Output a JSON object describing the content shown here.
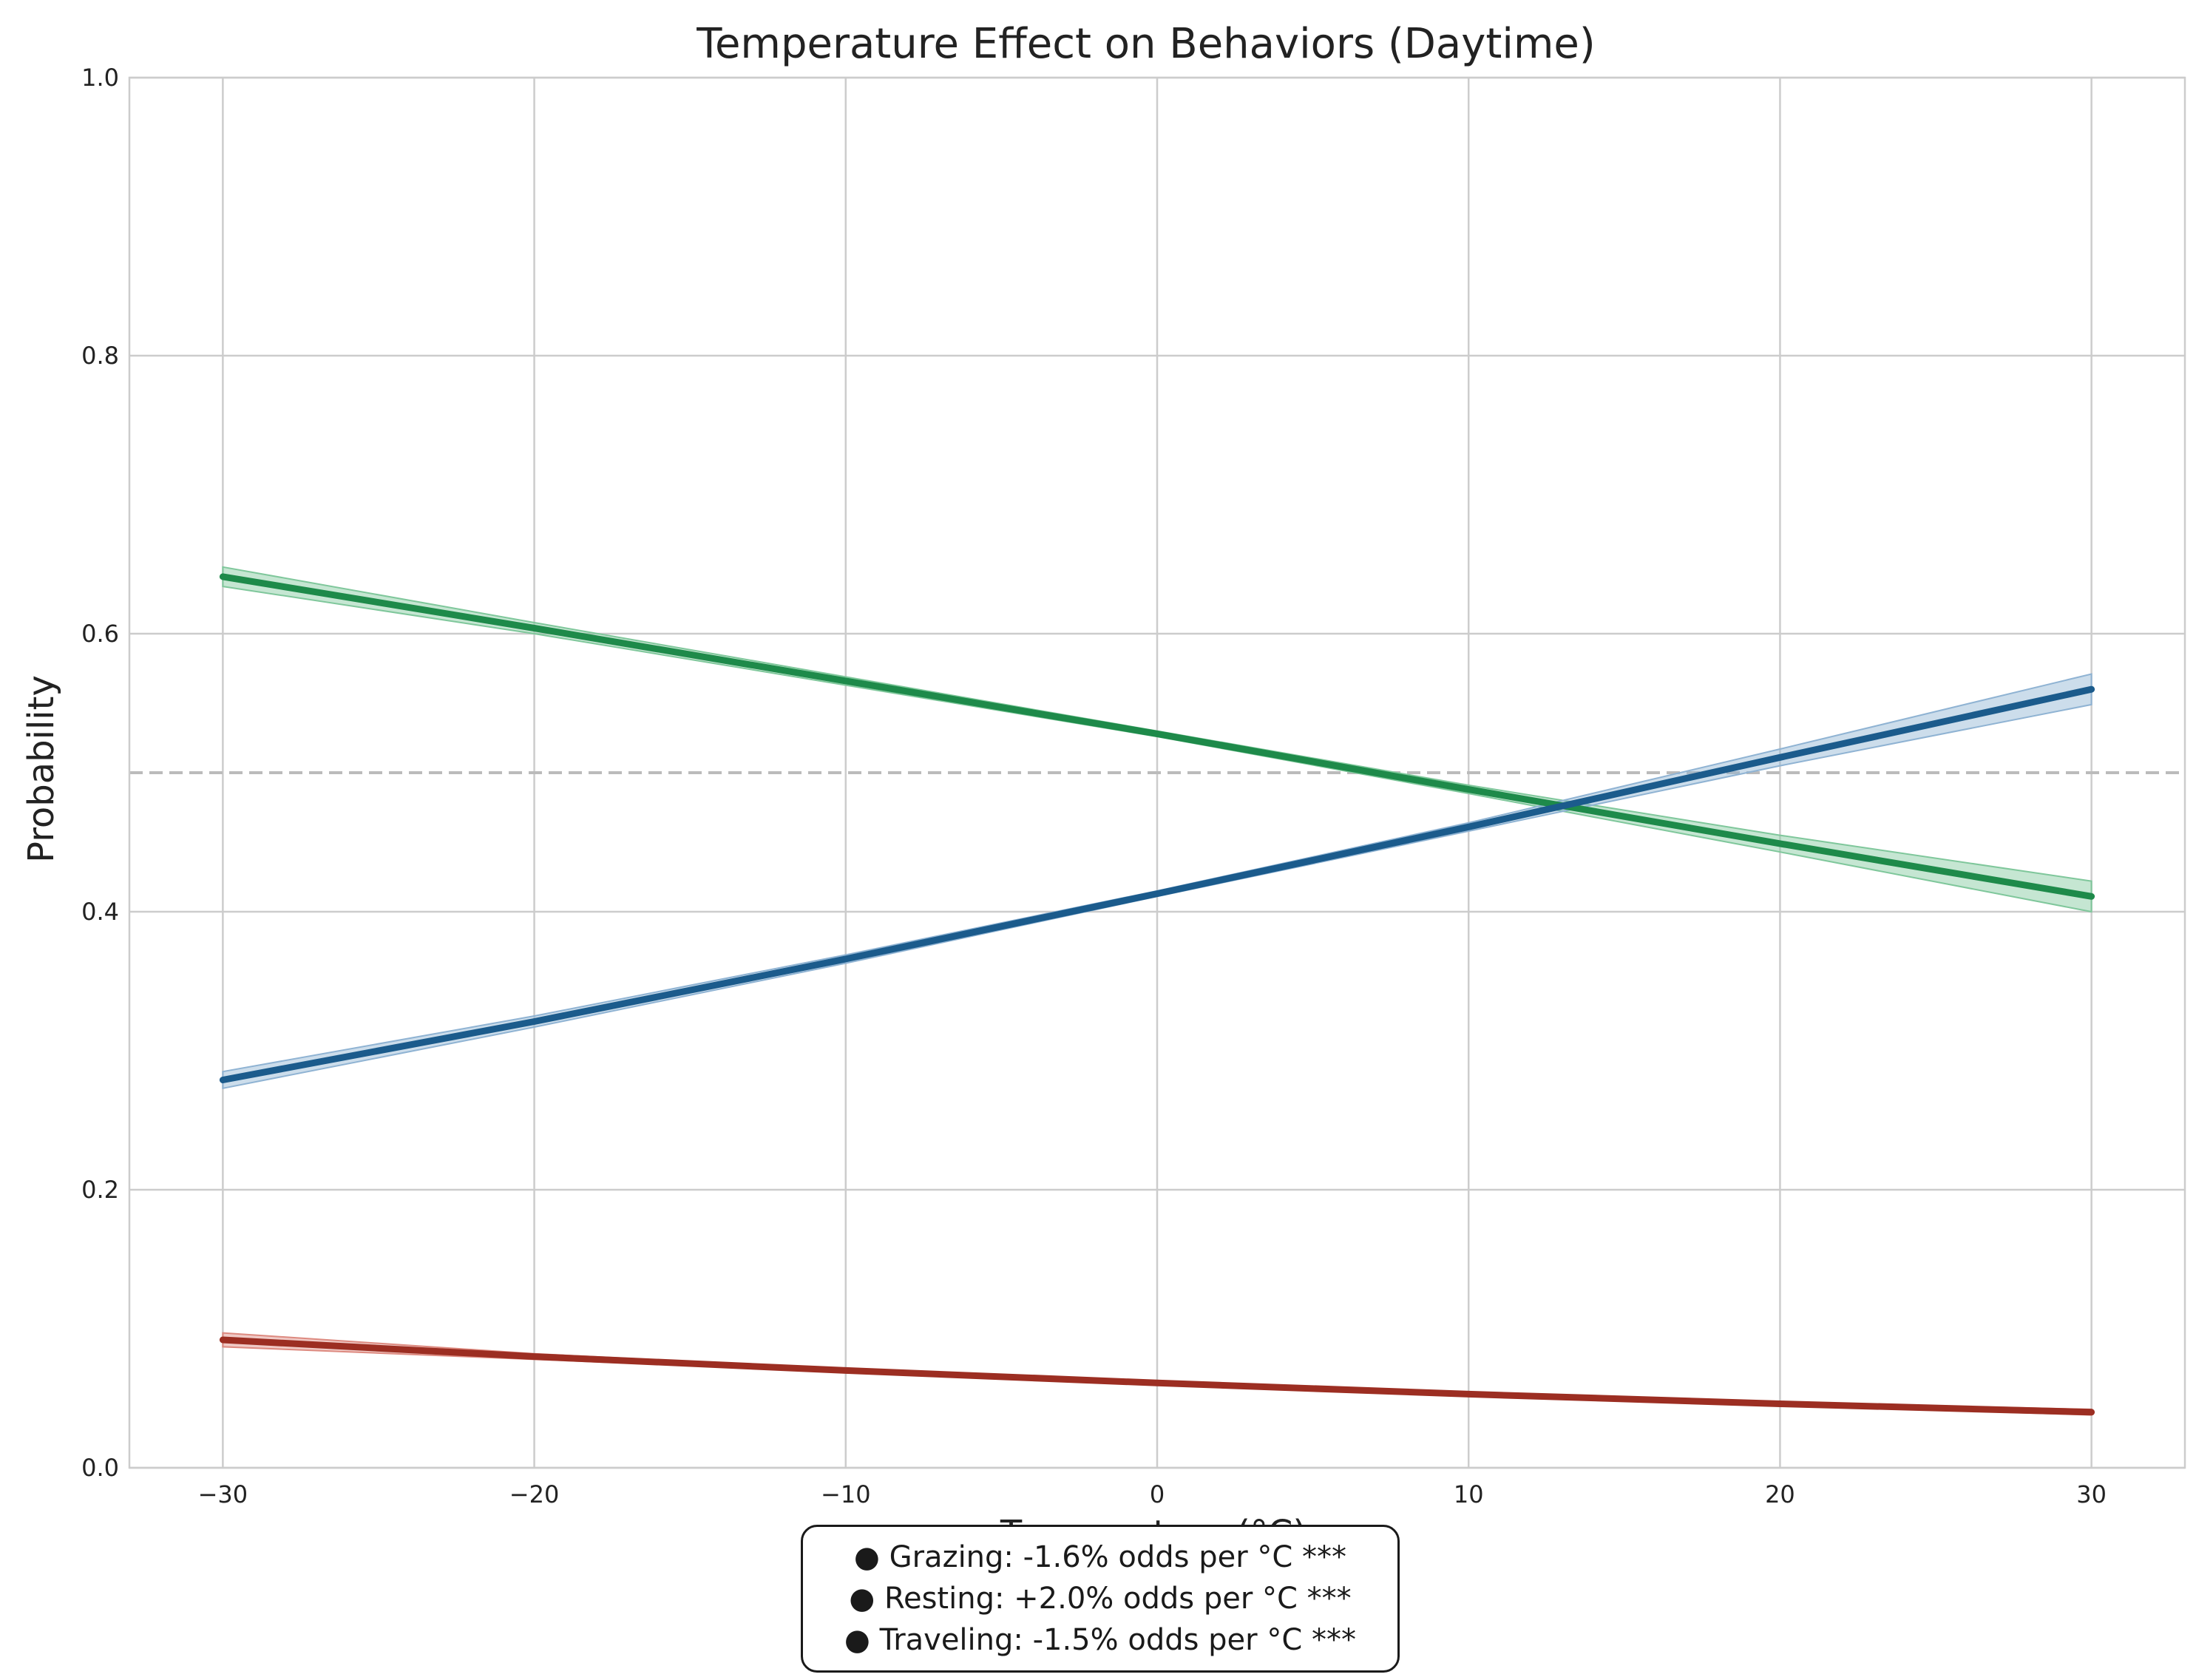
{
  "chart_data": {
    "type": "line",
    "title": "Temperature Effect on Behaviors (Daytime)",
    "xlabel": "Temperature (°C)",
    "ylabel": "Probability",
    "xlim": [
      -33,
      33
    ],
    "ylim": [
      0,
      1
    ],
    "xticks": [
      -30,
      -20,
      -10,
      0,
      10,
      20,
      30
    ],
    "xtick_labels": [
      "−30",
      "−20",
      "−10",
      "0",
      "10",
      "20",
      "30"
    ],
    "yticks": [
      0,
      0.2,
      0.4,
      0.6,
      0.8,
      1.0
    ],
    "ytick_labels": [
      "0.0",
      "0.2",
      "0.4",
      "0.6",
      "0.8",
      "1.0"
    ],
    "grid": true,
    "reference_line": {
      "y": 0.5,
      "style": "dashed",
      "color": "#bbbbbb"
    },
    "series": [
      {
        "name": "Grazing",
        "color": "#1e8a4a",
        "band_color": "#7fc79b",
        "x": [
          -30,
          -20,
          -10,
          0,
          10,
          20,
          30
        ],
        "y": [
          0.641,
          0.604,
          0.566,
          0.528,
          0.488,
          0.449,
          0.411
        ],
        "ci": [
          0.007,
          0.004,
          0.003,
          0.002,
          0.003,
          0.006,
          0.011
        ]
      },
      {
        "name": "Resting",
        "color": "#1b5b8c",
        "band_color": "#8fb3d3",
        "x": [
          -30,
          -20,
          -10,
          0,
          10,
          20,
          30
        ],
        "y": [
          0.279,
          0.321,
          0.366,
          0.413,
          0.461,
          0.511,
          0.56
        ],
        "ci": [
          0.006,
          0.004,
          0.003,
          0.002,
          0.003,
          0.006,
          0.011
        ]
      },
      {
        "name": "Traveling",
        "color": "#9c2e22",
        "band_color": "#dd8a80",
        "x": [
          -30,
          -20,
          -10,
          0,
          10,
          20,
          30
        ],
        "y": [
          0.092,
          0.08,
          0.07,
          0.061,
          0.053,
          0.046,
          0.04
        ],
        "ci": [
          0.005,
          0.002,
          0.001,
          0.001,
          0.001,
          0.001,
          0.002
        ]
      }
    ],
    "annotation_lines": [
      "● Grazing: -1.6% odds per °C ***",
      "● Resting: +2.0% odds per °C ***",
      "● Traveling: -1.5% odds per °C ***"
    ]
  }
}
